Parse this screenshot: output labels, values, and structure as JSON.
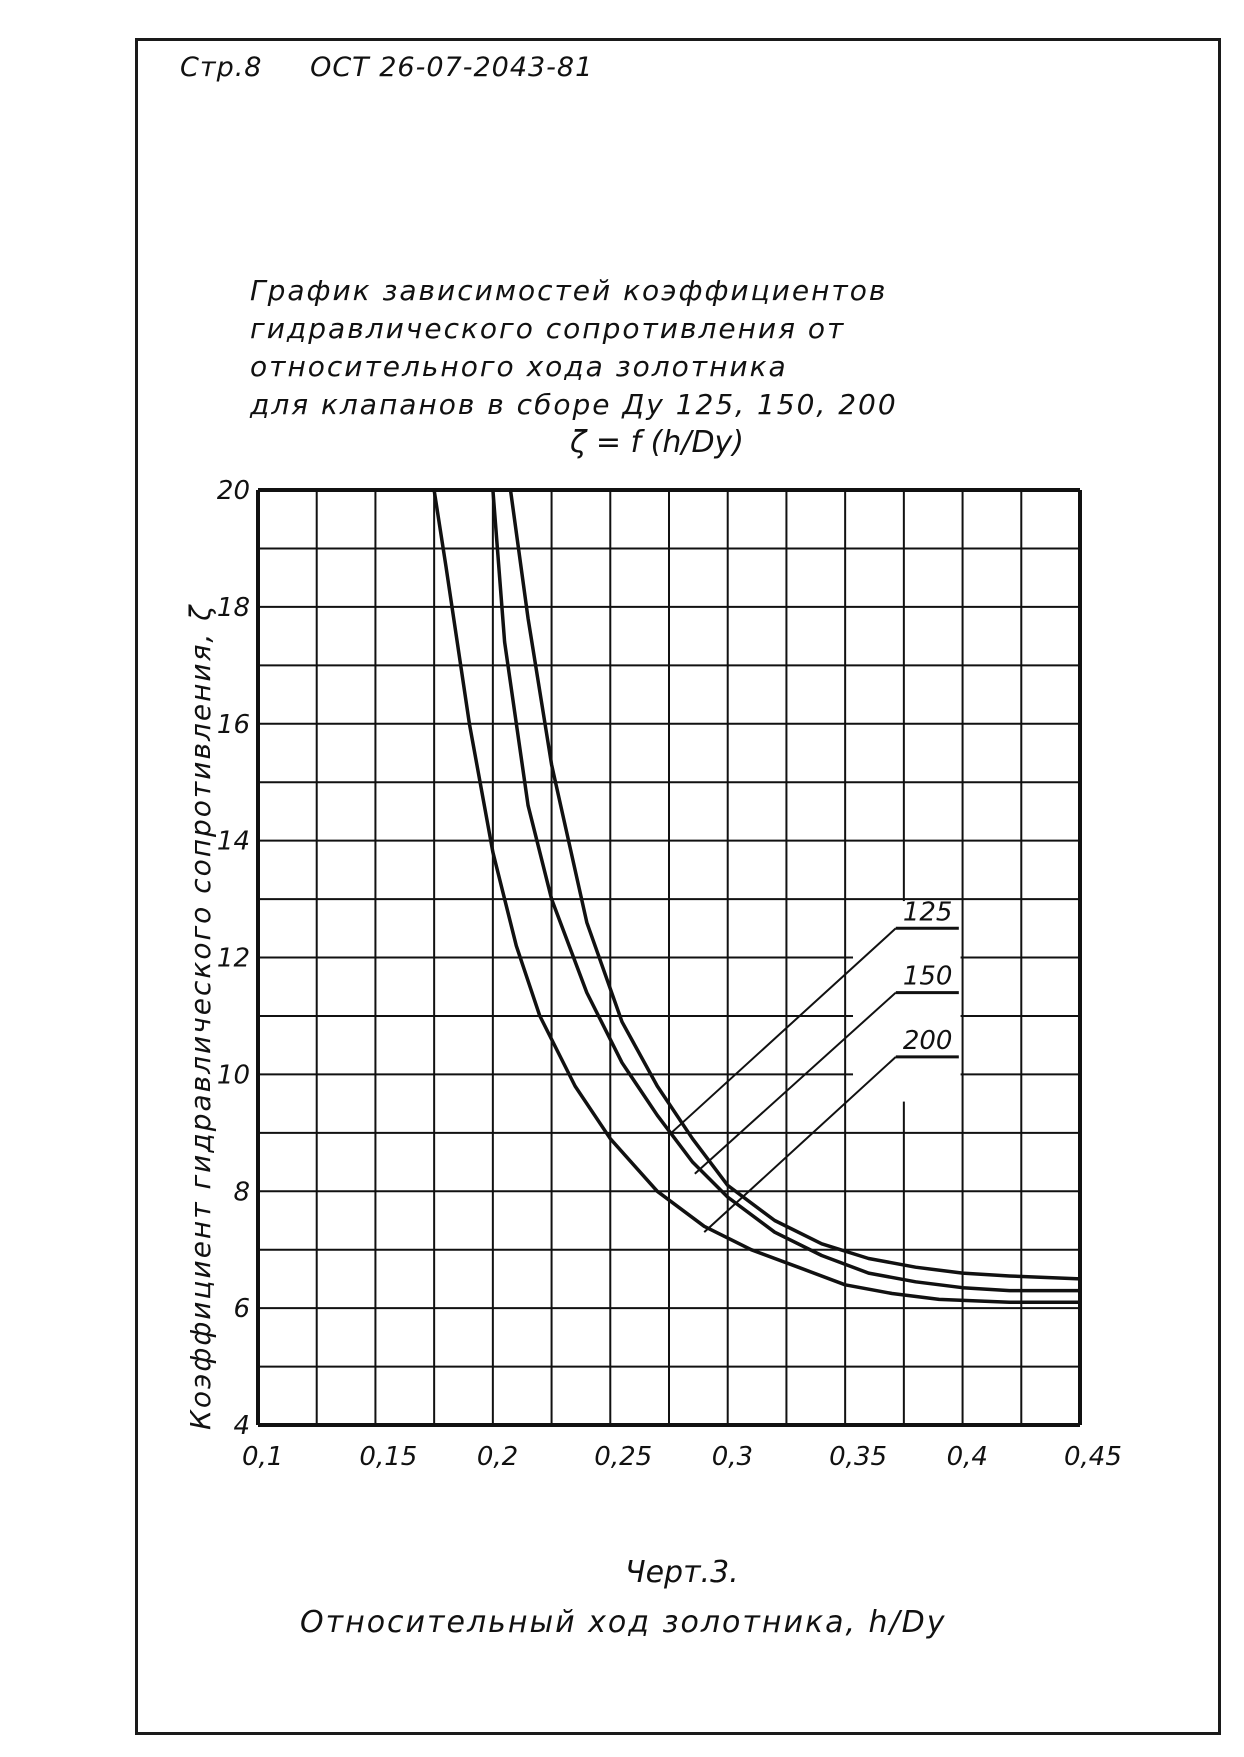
{
  "header": {
    "page": "Стр.8",
    "standard": "ОСТ 26-07-2043-81"
  },
  "title_lines": [
    "График зависимостей коэффициентов",
    "гидравлического сопротивления от",
    "относительного хода золотника",
    "для клапанов в сборе Ду 125, 150, 200"
  ],
  "formula": "ζ = f (h/Dу)",
  "caption": "Черт.3.",
  "chart_data": {
    "type": "line",
    "title": "",
    "xlabel": "Относительный ход золотника, h/Dу",
    "ylabel": "Коэффициент гидравлического сопротивления, ζ",
    "xlim": [
      0.1,
      0.45
    ],
    "ylim": [
      4,
      20
    ],
    "x_tick_labels": [
      "0,1",
      "0,15",
      "0,2",
      "0,25",
      "0,3",
      "0,35",
      "0,4",
      "0,45"
    ],
    "x_ticks": [
      0.1,
      0.15,
      0.2,
      0.25,
      0.3,
      0.35,
      0.4,
      0.45
    ],
    "y_tick_labels": [
      "4",
      "6",
      "8",
      "10",
      "12",
      "14",
      "16",
      "18",
      "20"
    ],
    "y_ticks": [
      4,
      6,
      8,
      10,
      12,
      14,
      16,
      18,
      20
    ],
    "grid": true,
    "legend": "callout labels to the right of curves",
    "series": [
      {
        "name": "125",
        "x": [
          0.2075,
          0.215,
          0.225,
          0.24,
          0.255,
          0.27,
          0.285,
          0.3,
          0.32,
          0.34,
          0.36,
          0.38,
          0.4,
          0.42,
          0.45
        ],
        "y": [
          20,
          17.8,
          15.3,
          12.6,
          10.9,
          9.8,
          8.9,
          8.1,
          7.5,
          7.1,
          6.85,
          6.7,
          6.6,
          6.55,
          6.5
        ]
      },
      {
        "name": "150",
        "x": [
          0.2,
          0.205,
          0.215,
          0.225,
          0.24,
          0.255,
          0.27,
          0.285,
          0.3,
          0.32,
          0.34,
          0.36,
          0.38,
          0.4,
          0.42,
          0.45
        ],
        "y": [
          20,
          17.4,
          14.6,
          13.0,
          11.4,
          10.2,
          9.3,
          8.5,
          7.9,
          7.3,
          6.9,
          6.6,
          6.45,
          6.35,
          6.3,
          6.3
        ]
      },
      {
        "name": "200",
        "x": [
          0.175,
          0.18,
          0.19,
          0.2,
          0.21,
          0.22,
          0.235,
          0.25,
          0.27,
          0.29,
          0.31,
          0.33,
          0.35,
          0.37,
          0.39,
          0.42,
          0.45
        ],
        "y": [
          20,
          18.7,
          16.0,
          13.8,
          12.2,
          11.0,
          9.8,
          8.9,
          8.0,
          7.4,
          7.0,
          6.7,
          6.4,
          6.25,
          6.15,
          6.1,
          6.1
        ]
      }
    ]
  }
}
